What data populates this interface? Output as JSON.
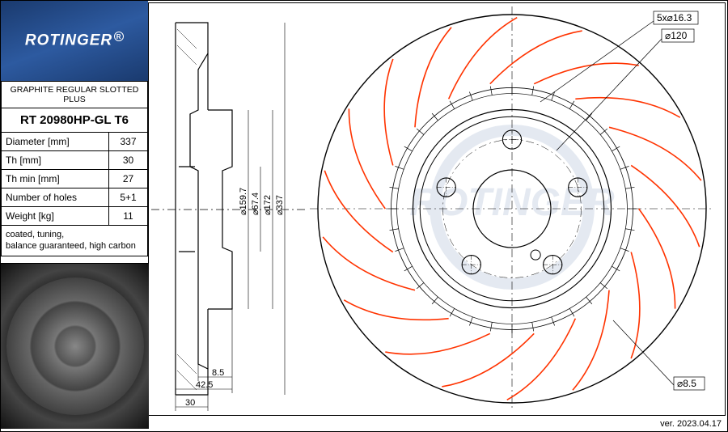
{
  "logo": {
    "brand": "ROTINGER"
  },
  "spec": {
    "title": "GRAPHITE REGULAR SLOTTED PLUS",
    "part_number": "RT 20980HP-GL T6",
    "rows": [
      {
        "label": "Diameter [mm]",
        "value": "337"
      },
      {
        "label": "Th [mm]",
        "value": "30"
      },
      {
        "label": "Th min [mm]",
        "value": "27"
      },
      {
        "label": "Number of holes",
        "value": "5+1"
      },
      {
        "label": "Weight [kg]",
        "value": "11"
      }
    ],
    "notes": "coated, tuning,\nbalance guaranteed, high carbon"
  },
  "version": "ver. 2023.04.17",
  "cross_section": {
    "dims": {
      "d159_7": "⌀159.7",
      "d67_4": "⌀67.4",
      "d172": "⌀172",
      "d337": "⌀337",
      "w8_5": "8.5",
      "w42_5": "42.5",
      "w30": "30"
    },
    "stroke": "#000000",
    "stroke_width": 1.2,
    "centerline_dash": "8,3,2,3"
  },
  "front_view": {
    "outer_diameter": 337,
    "callouts": {
      "holes": "5x⌀16.3",
      "pcd": "⌀120",
      "small_hole": "⌀8.5"
    },
    "n_slots": 18,
    "n_bolt_holes": 5,
    "slot_color": "#ff3300",
    "line_color": "#000000",
    "centerline_dash": "10,4,2,4",
    "watermark_color": "#cfd8e6",
    "stroke_width": 1.2
  }
}
